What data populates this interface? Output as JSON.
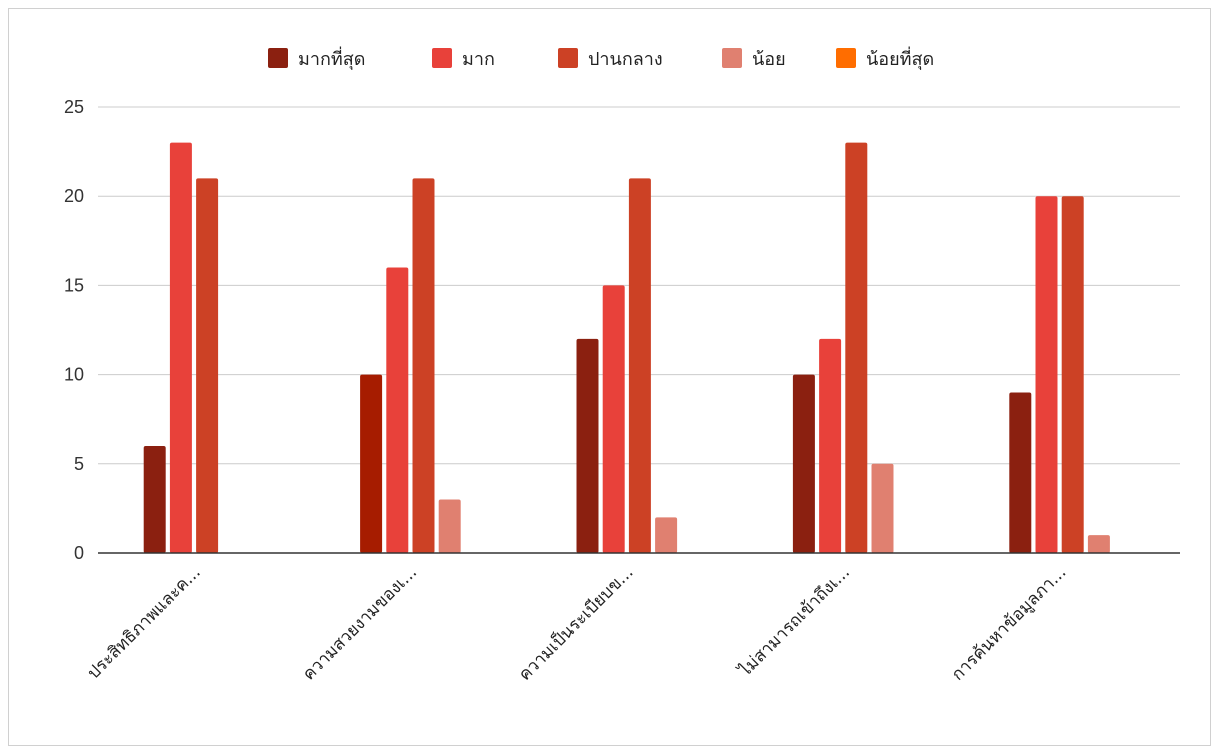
{
  "chart_data": {
    "type": "bar",
    "title": "",
    "xlabel": "",
    "ylabel": "",
    "ylim": [
      0,
      25
    ],
    "yticks": [
      0,
      5,
      10,
      15,
      20,
      25
    ],
    "grid": true,
    "legend_position": "top",
    "categories": [
      "ประสิทธิภาพและค...",
      "ความสวยงามของเ...",
      "ความเป็นระเบียบข...",
      "ไม่สามารถเข้าถึงเ...",
      "การค้นหาข้อมูลภา..."
    ],
    "series": [
      {
        "name": "มากที่สุด",
        "color": "#8b2010",
        "values": [
          6,
          10,
          12,
          10,
          9
        ]
      },
      {
        "name": "มาก",
        "color": "#e8413a",
        "values": [
          23,
          16,
          15,
          12,
          20
        ]
      },
      {
        "name": "ปานกลาง",
        "color": "#cc4125",
        "values": [
          21,
          21,
          21,
          23,
          20
        ]
      },
      {
        "name": "น้อย",
        "color": "#e08070",
        "values": [
          0,
          3,
          2,
          5,
          1
        ]
      },
      {
        "name": "น้อยที่สุด",
        "color": "#ff6d00",
        "values": [
          0,
          0,
          0,
          0,
          0
        ]
      }
    ],
    "point_colors": {
      "0": {
        "1": "#a61c00"
      }
    }
  }
}
